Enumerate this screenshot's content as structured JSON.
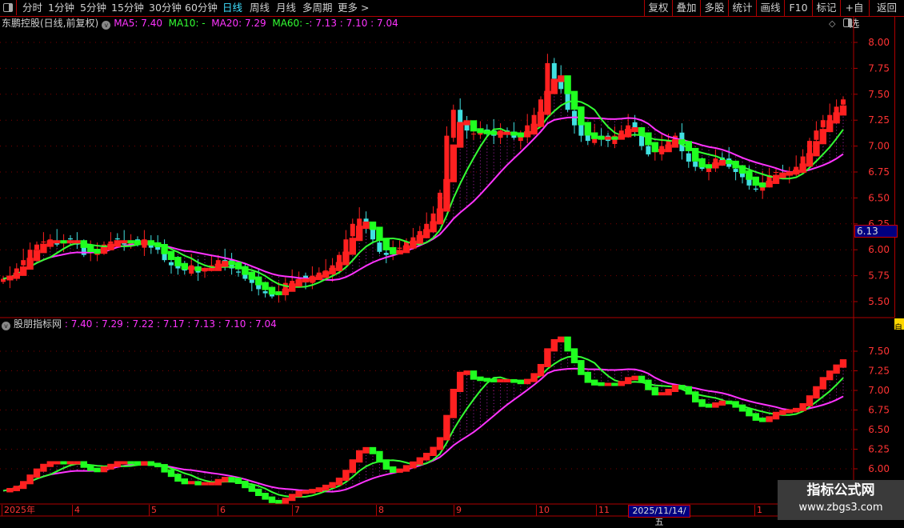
{
  "toolbar": {
    "periods": [
      "分时",
      "1分钟",
      "5分钟",
      "15分钟",
      "30分钟",
      "60分钟",
      "日线",
      "周线",
      "月线",
      "多周期",
      "更多 >"
    ],
    "active_period": "日线",
    "right_buttons": [
      "复权",
      "叠加",
      "多股",
      "统计",
      "画线",
      "F10",
      "标记",
      "+自选",
      "返回"
    ]
  },
  "main_pane": {
    "title": "东鹏控股(日线,前复权)",
    "ma5": "MA5: 7.40",
    "ma10": "MA10: -",
    "ma20": "MA20: 7.29",
    "ma60": "MA60: -",
    "extra": ": 7.13 : 7.10 : 7.04",
    "price_tag": "6.13",
    "y_ticks": [
      "8.00",
      "7.75",
      "7.50",
      "7.25",
      "7.00",
      "6.75",
      "6.50",
      "6.25",
      "6.00",
      "5.75",
      "5.50"
    ]
  },
  "sub_pane": {
    "title": "股朋指标网",
    "values": ": 7.40 : 7.29 : 7.22 : 7.17 : 7.13 : 7.10 : 7.04",
    "y_ticks": [
      "7.50",
      "7.25",
      "7.00",
      "6.75",
      "6.50",
      "6.25",
      "6.00"
    ],
    "side_tag": "自"
  },
  "x_axis": {
    "labels": [
      "2025年",
      "4",
      "5",
      "6",
      "7",
      "8",
      "9",
      "10",
      "11",
      "1"
    ],
    "cursor_date": "2025/11/14/五"
  },
  "watermark": {
    "title": "指标公式网",
    "url": "www.zbgs3.com"
  },
  "colors": {
    "up": "#ff2020",
    "down": "#20ff20",
    "down_candle": "#40e0e0",
    "ma_slow": "#ff33ff",
    "ma_fast": "#33ff33",
    "grid": "#b00000"
  },
  "chart_data": {
    "type": "candlestick",
    "ylim_main": [
      5.45,
      8.1
    ],
    "ylim_sub": [
      5.95,
      7.75
    ],
    "close": [
      5.72,
      5.75,
      5.82,
      5.9,
      6.0,
      6.05,
      6.08,
      6.1,
      6.05,
      6.08,
      6.1,
      6.05,
      5.95,
      5.98,
      6.0,
      6.05,
      6.08,
      6.1,
      6.05,
      6.08,
      6.05,
      6.1,
      6.02,
      6.0,
      5.9,
      5.85,
      5.82,
      5.8,
      5.85,
      5.78,
      5.8,
      5.85,
      5.9,
      5.88,
      5.82,
      5.78,
      5.72,
      5.68,
      5.62,
      5.58,
      5.55,
      5.6,
      5.68,
      5.7,
      5.72,
      5.7,
      5.75,
      5.78,
      5.8,
      5.85,
      5.95,
      6.1,
      6.25,
      6.3,
      6.22,
      6.1,
      5.98,
      5.95,
      5.98,
      6.02,
      6.08,
      6.12,
      6.18,
      6.25,
      6.35,
      6.55,
      7.1,
      7.35,
      7.2,
      7.15,
      7.12,
      7.15,
      7.12,
      7.1,
      7.15,
      7.12,
      7.08,
      7.1,
      7.2,
      7.3,
      7.45,
      7.8,
      7.65,
      7.55,
      7.35,
      7.2,
      7.1,
      7.05,
      7.1,
      7.08,
      7.05,
      7.1,
      7.15,
      7.2,
      7.15,
      7.0,
      6.92,
      6.95,
      7.0,
      7.05,
      7.1,
      6.95,
      6.85,
      6.8,
      6.78,
      6.82,
      6.88,
      6.85,
      6.8,
      6.75,
      6.7,
      6.62,
      6.58,
      6.65,
      6.72,
      6.75,
      6.72,
      6.75,
      6.8,
      6.9,
      7.05,
      7.15,
      7.25,
      7.3,
      7.38,
      7.45
    ]
  }
}
